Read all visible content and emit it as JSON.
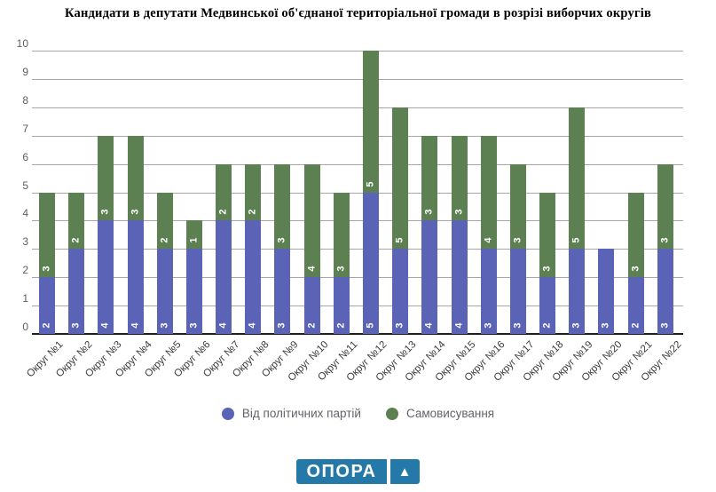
{
  "title": "Кандидати в депутати Медвинської об'єднаної територіальної громади в розрізі виборчих округів",
  "chart_data": {
    "type": "bar",
    "stacked": true,
    "title": "Кандидати в депутати Медвинської об'єднаної територіальної громади в розрізі виборчих округів",
    "categories": [
      "Округ №1",
      "Округ №2",
      "Округ №3",
      "Округ №4",
      "Округ №5",
      "Округ №6",
      "Округ №7",
      "Округ №8",
      "Округ №9",
      "Округ №10",
      "Округ №11",
      "Округ №12",
      "Округ №13",
      "Округ №14",
      "Округ №15",
      "Округ №16",
      "Округ №17",
      "Округ №18",
      "Округ №19",
      "Округ №20",
      "Округ №21",
      "Округ №22"
    ],
    "series": [
      {
        "name": "Від політичних партій",
        "color": "#5b63b7",
        "values": [
          2,
          3,
          4,
          4,
          3,
          3,
          4,
          4,
          3,
          2,
          2,
          5,
          3,
          4,
          4,
          3,
          3,
          2,
          3,
          3,
          2,
          3
        ]
      },
      {
        "name": "Самовисування",
        "color": "#5d8052",
        "values": [
          3,
          2,
          3,
          3,
          2,
          1,
          2,
          2,
          3,
          4,
          3,
          5,
          5,
          3,
          3,
          4,
          3,
          3,
          5,
          0,
          3,
          3
        ]
      }
    ],
    "xlabel": "",
    "ylabel": "",
    "ylim": [
      0,
      10
    ],
    "yticks": [
      "0",
      "1",
      "2",
      "3",
      "4",
      "5",
      "6",
      "7",
      "8",
      "9",
      "10"
    ],
    "grid": true,
    "bar_value_labels": "white, rotated 90°, at base of each segment",
    "legend_position": "bottom"
  },
  "legend": {
    "items": [
      {
        "label": "Від політичних партій",
        "color": "#5b63b7"
      },
      {
        "label": "Самовисування",
        "color": "#5d8052"
      }
    ]
  },
  "logo": {
    "text": "ОПОРА",
    "triangle_icon": "▲",
    "background_color": "#2579a9"
  },
  "colors": {
    "background": "#ffffff",
    "gridline": "#a6a6a6",
    "axis_line": "#1f1f1f",
    "y_tick_text": "#5f5f5f",
    "x_tick_text": "#3a3a3a",
    "legend_text": "#5f6368"
  }
}
